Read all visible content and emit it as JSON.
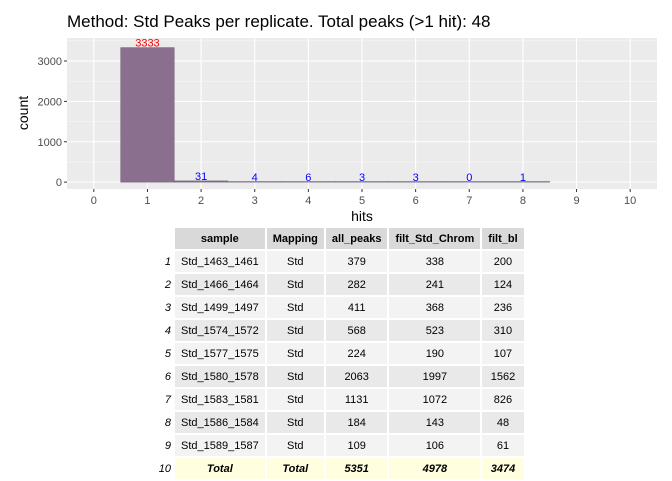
{
  "chart_data": {
    "type": "bar",
    "title": "Method: Std Peaks per replicate. Total peaks (>1 hit): 48",
    "xlabel": "hits",
    "ylabel": "count",
    "categories": [
      "0",
      "1",
      "2",
      "3",
      "4",
      "5",
      "6",
      "7",
      "8",
      "9",
      "10"
    ],
    "bar_x": [
      1,
      2,
      3,
      4,
      5,
      6,
      7,
      8
    ],
    "values": [
      3333,
      31,
      4,
      6,
      3,
      3,
      0,
      1
    ],
    "labels": [
      "3333",
      "31",
      "4",
      "6",
      "3",
      "3",
      "0",
      "1"
    ],
    "label_colors": [
      "#ff0000",
      "#0000ff",
      "#0000ff",
      "#0000ff",
      "#0000ff",
      "#0000ff",
      "#0000ff",
      "#0000ff"
    ],
    "yticks": [
      0,
      1000,
      2000,
      3000
    ],
    "ylim": [
      -170,
      3570
    ],
    "xlim": [
      -0.5,
      10.5
    ],
    "bar_color": "#8a6f8f",
    "grid": true
  },
  "table": {
    "headers": [
      "sample",
      "Mapping",
      "all_peaks",
      "filt_Std_Chrom",
      "filt_bl"
    ],
    "rows": [
      {
        "idx": "1",
        "cells": [
          "Std_1463_1461",
          "Std",
          "379",
          "338",
          "200"
        ]
      },
      {
        "idx": "2",
        "cells": [
          "Std_1466_1464",
          "Std",
          "282",
          "241",
          "124"
        ]
      },
      {
        "idx": "3",
        "cells": [
          "Std_1499_1497",
          "Std",
          "411",
          "368",
          "236"
        ]
      },
      {
        "idx": "4",
        "cells": [
          "Std_1574_1572",
          "Std",
          "568",
          "523",
          "310"
        ]
      },
      {
        "idx": "5",
        "cells": [
          "Std_1577_1575",
          "Std",
          "224",
          "190",
          "107"
        ]
      },
      {
        "idx": "6",
        "cells": [
          "Std_1580_1578",
          "Std",
          "2063",
          "1997",
          "1562"
        ]
      },
      {
        "idx": "7",
        "cells": [
          "Std_1583_1581",
          "Std",
          "1131",
          "1072",
          "826"
        ]
      },
      {
        "idx": "8",
        "cells": [
          "Std_1586_1584",
          "Std",
          "184",
          "143",
          "48"
        ]
      },
      {
        "idx": "9",
        "cells": [
          "Std_1589_1587",
          "Std",
          "109",
          "106",
          "61"
        ]
      }
    ],
    "total": {
      "idx": "10",
      "cells": [
        "Total",
        "Total",
        "5351",
        "4978",
        "3474"
      ]
    }
  }
}
